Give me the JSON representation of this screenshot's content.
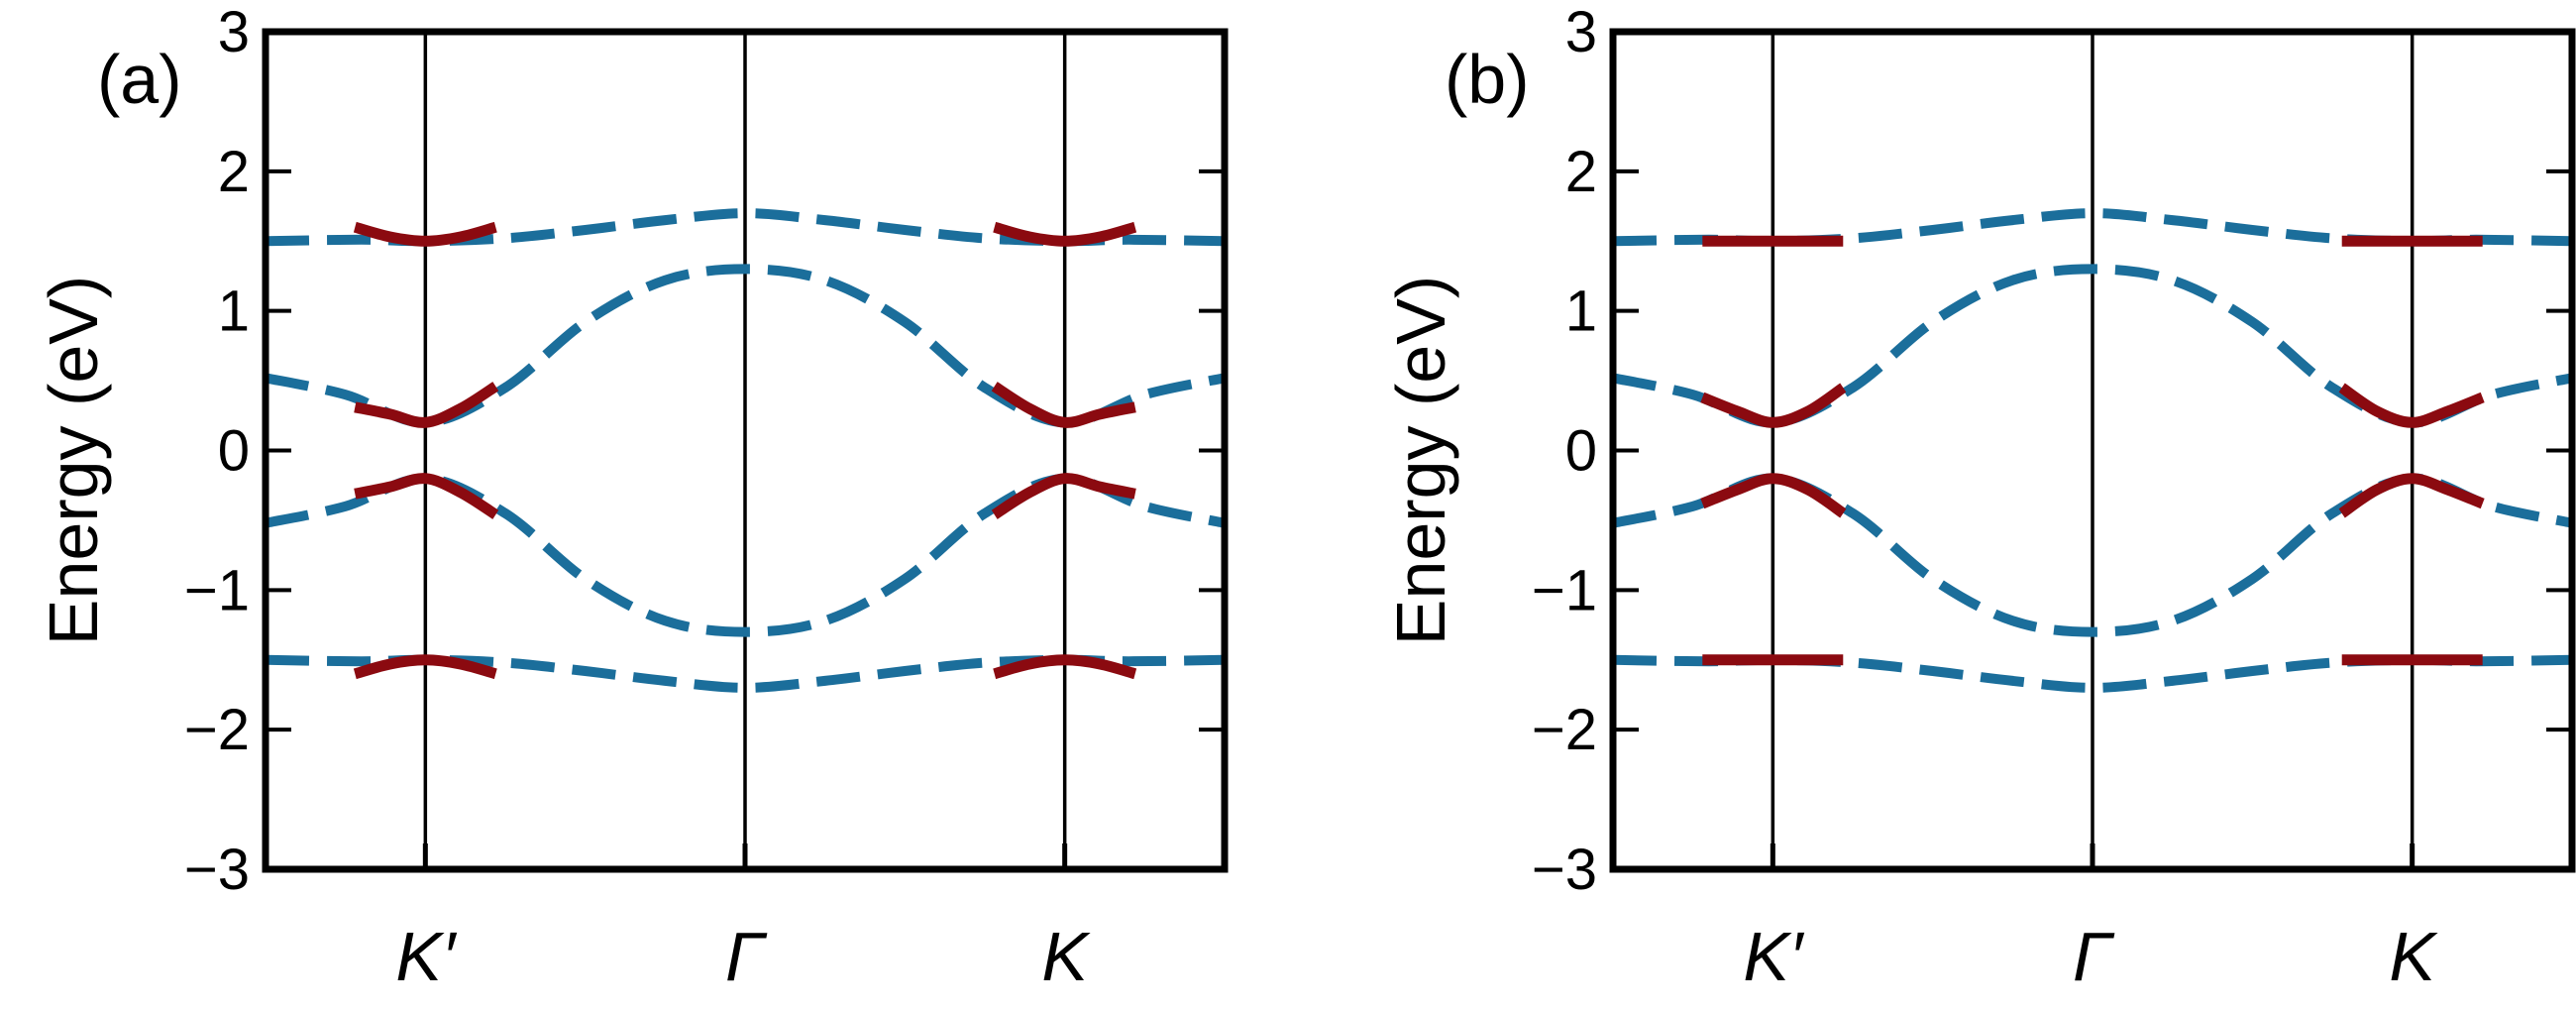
{
  "chart_data": [
    {
      "type": "line",
      "panel_label": "(a)",
      "ylabel": "Energy (eV)",
      "ylim": [
        -3,
        3
      ],
      "yticks": [
        3,
        2,
        1,
        0,
        -1,
        -2,
        -3
      ],
      "ytick_labels": [
        "3",
        "2",
        "1",
        "0",
        "−1",
        "−2",
        "−3"
      ],
      "xtick_labels": [
        "K′",
        "Γ",
        "K"
      ],
      "grid": false,
      "legend": "none",
      "series_style": {
        "full": {
          "color": "#1b6e9b",
          "dash": "dashed"
        },
        "approx": {
          "color": "#8b0a10",
          "dash": "solid"
        }
      },
      "series": [
        {
          "kind": "full",
          "band": 1,
          "x": [
            -1.5,
            -1.2,
            -1.0,
            -0.75,
            -0.5,
            -0.25,
            0.0,
            0.25,
            0.5,
            0.75,
            1.0,
            1.2,
            1.5
          ],
          "y": [
            1.5,
            1.51,
            1.5,
            1.52,
            1.58,
            1.65,
            1.7,
            1.65,
            1.58,
            1.52,
            1.5,
            1.51,
            1.5
          ]
        },
        {
          "kind": "full",
          "band": 2,
          "x": [
            -1.5,
            -1.25,
            -1.0,
            -0.75,
            -0.5,
            -0.25,
            0.0,
            0.25,
            0.5,
            0.75,
            1.0,
            1.25,
            1.5
          ],
          "y": [
            0.52,
            0.4,
            0.2,
            0.45,
            0.92,
            1.22,
            1.3,
            1.22,
            0.92,
            0.45,
            0.2,
            0.4,
            0.52
          ]
        },
        {
          "kind": "full",
          "band": 3,
          "x": [
            -1.5,
            -1.25,
            -1.0,
            -0.75,
            -0.5,
            -0.25,
            0.0,
            0.25,
            0.5,
            0.75,
            1.0,
            1.25,
            1.5
          ],
          "y": [
            -0.52,
            -0.4,
            -0.2,
            -0.45,
            -0.92,
            -1.22,
            -1.3,
            -1.22,
            -0.92,
            -0.45,
            -0.2,
            -0.4,
            -0.52
          ]
        },
        {
          "kind": "full",
          "band": 4,
          "x": [
            -1.5,
            -1.2,
            -1.0,
            -0.75,
            -0.5,
            -0.25,
            0.0,
            0.25,
            0.5,
            0.75,
            1.0,
            1.2,
            1.5
          ],
          "y": [
            -1.5,
            -1.51,
            -1.5,
            -1.52,
            -1.58,
            -1.65,
            -1.7,
            -1.65,
            -1.58,
            -1.52,
            -1.5,
            -1.51,
            -1.5
          ]
        },
        {
          "kind": "approx",
          "band": 1,
          "x": [
            -1.22,
            -1.11,
            -1.0,
            -0.89,
            -0.78
          ],
          "y": [
            1.6,
            1.53,
            1.5,
            1.53,
            1.6
          ]
        },
        {
          "kind": "approx",
          "band": 2,
          "x": [
            -1.22,
            -1.11,
            -1.0,
            -0.89,
            -0.78
          ],
          "y": [
            0.31,
            0.26,
            0.2,
            0.3,
            0.46
          ]
        },
        {
          "kind": "approx",
          "band": 3,
          "x": [
            -1.22,
            -1.11,
            -1.0,
            -0.89,
            -0.78
          ],
          "y": [
            -0.31,
            -0.26,
            -0.2,
            -0.3,
            -0.46
          ]
        },
        {
          "kind": "approx",
          "band": 4,
          "x": [
            -1.22,
            -1.11,
            -1.0,
            -0.89,
            -0.78
          ],
          "y": [
            -1.6,
            -1.53,
            -1.5,
            -1.53,
            -1.6
          ]
        },
        {
          "kind": "approx",
          "band": 1,
          "x": [
            0.78,
            0.89,
            1.0,
            1.11,
            1.22
          ],
          "y": [
            1.6,
            1.53,
            1.5,
            1.53,
            1.6
          ]
        },
        {
          "kind": "approx",
          "band": 2,
          "x": [
            0.78,
            0.89,
            1.0,
            1.11,
            1.22
          ],
          "y": [
            0.46,
            0.3,
            0.2,
            0.26,
            0.31
          ]
        },
        {
          "kind": "approx",
          "band": 3,
          "x": [
            0.78,
            0.89,
            1.0,
            1.11,
            1.22
          ],
          "y": [
            -0.46,
            -0.3,
            -0.2,
            -0.26,
            -0.31
          ]
        },
        {
          "kind": "approx",
          "band": 4,
          "x": [
            0.78,
            0.89,
            1.0,
            1.11,
            1.22
          ],
          "y": [
            -1.6,
            -1.53,
            -1.5,
            -1.53,
            -1.6
          ]
        }
      ]
    },
    {
      "type": "line",
      "panel_label": "(b)",
      "ylabel": "Energy (eV)",
      "ylim": [
        -3,
        3
      ],
      "yticks": [
        3,
        2,
        1,
        0,
        -1,
        -2,
        -3
      ],
      "ytick_labels": [
        "3",
        "2",
        "1",
        "0",
        "−1",
        "−2",
        "−3"
      ],
      "xtick_labels": [
        "K′",
        "Γ",
        "K"
      ],
      "grid": false,
      "legend": "none",
      "series_style": {
        "full": {
          "color": "#1b6e9b",
          "dash": "dashed"
        },
        "approx": {
          "color": "#8b0a10",
          "dash": "solid"
        }
      },
      "series": [
        {
          "kind": "full",
          "band": 1,
          "x": [
            -1.5,
            -1.2,
            -1.0,
            -0.75,
            -0.5,
            -0.25,
            0.0,
            0.25,
            0.5,
            0.75,
            1.0,
            1.2,
            1.5
          ],
          "y": [
            1.5,
            1.51,
            1.5,
            1.52,
            1.58,
            1.65,
            1.7,
            1.65,
            1.58,
            1.52,
            1.5,
            1.51,
            1.5
          ]
        },
        {
          "kind": "full",
          "band": 2,
          "x": [
            -1.5,
            -1.25,
            -1.0,
            -0.75,
            -0.5,
            -0.25,
            0.0,
            0.25,
            0.5,
            0.75,
            1.0,
            1.25,
            1.5
          ],
          "y": [
            0.52,
            0.4,
            0.2,
            0.45,
            0.92,
            1.22,
            1.3,
            1.22,
            0.92,
            0.45,
            0.2,
            0.4,
            0.52
          ]
        },
        {
          "kind": "full",
          "band": 3,
          "x": [
            -1.5,
            -1.25,
            -1.0,
            -0.75,
            -0.5,
            -0.25,
            0.0,
            0.25,
            0.5,
            0.75,
            1.0,
            1.25,
            1.5
          ],
          "y": [
            -0.52,
            -0.4,
            -0.2,
            -0.45,
            -0.92,
            -1.22,
            -1.3,
            -1.22,
            -0.92,
            -0.45,
            -0.2,
            -0.4,
            -0.52
          ]
        },
        {
          "kind": "full",
          "band": 4,
          "x": [
            -1.5,
            -1.2,
            -1.0,
            -0.75,
            -0.5,
            -0.25,
            0.0,
            0.25,
            0.5,
            0.75,
            1.0,
            1.2,
            1.5
          ],
          "y": [
            -1.5,
            -1.51,
            -1.5,
            -1.52,
            -1.58,
            -1.65,
            -1.7,
            -1.65,
            -1.58,
            -1.52,
            -1.5,
            -1.51,
            -1.5
          ]
        },
        {
          "kind": "approx",
          "band": 1,
          "x": [
            -1.22,
            -1.11,
            -1.0,
            -0.89,
            -0.78
          ],
          "y": [
            1.5,
            1.5,
            1.5,
            1.5,
            1.5
          ]
        },
        {
          "kind": "approx",
          "band": 2,
          "x": [
            -1.22,
            -1.11,
            -1.0,
            -0.89,
            -0.78
          ],
          "y": [
            0.38,
            0.28,
            0.2,
            0.28,
            0.45
          ]
        },
        {
          "kind": "approx",
          "band": 3,
          "x": [
            -1.22,
            -1.11,
            -1.0,
            -0.89,
            -0.78
          ],
          "y": [
            -0.38,
            -0.28,
            -0.2,
            -0.28,
            -0.45
          ]
        },
        {
          "kind": "approx",
          "band": 4,
          "x": [
            -1.22,
            -1.11,
            -1.0,
            -0.89,
            -0.78
          ],
          "y": [
            -1.5,
            -1.5,
            -1.5,
            -1.5,
            -1.5
          ]
        },
        {
          "kind": "approx",
          "band": 1,
          "x": [
            0.78,
            0.89,
            1.0,
            1.11,
            1.22
          ],
          "y": [
            1.5,
            1.5,
            1.5,
            1.5,
            1.5
          ]
        },
        {
          "kind": "approx",
          "band": 2,
          "x": [
            0.78,
            0.89,
            1.0,
            1.11,
            1.22
          ],
          "y": [
            0.45,
            0.28,
            0.2,
            0.28,
            0.38
          ]
        },
        {
          "kind": "approx",
          "band": 3,
          "x": [
            0.78,
            0.89,
            1.0,
            1.11,
            1.22
          ],
          "y": [
            -0.45,
            -0.28,
            -0.2,
            -0.28,
            -0.38
          ]
        },
        {
          "kind": "approx",
          "band": 4,
          "x": [
            0.78,
            0.89,
            1.0,
            1.11,
            1.22
          ],
          "y": [
            -1.5,
            -1.5,
            -1.5,
            -1.5,
            -1.5
          ]
        }
      ]
    }
  ]
}
